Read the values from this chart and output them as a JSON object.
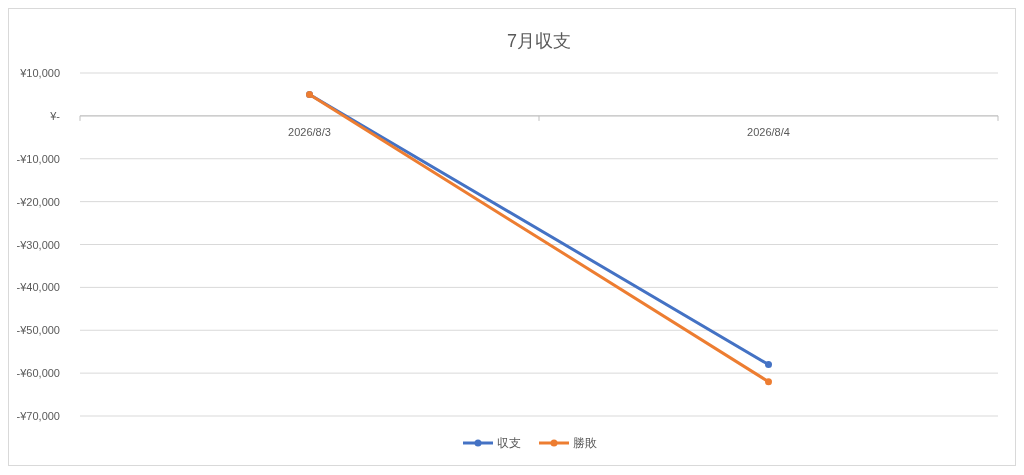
{
  "chart_data": {
    "type": "line",
    "title": "7月収支",
    "categories": [
      "2026/8/3",
      "2026/8/4"
    ],
    "series": [
      {
        "name": "収支",
        "color": "#4472c4",
        "values": [
          5000,
          -58000
        ]
      },
      {
        "name": "勝敗",
        "color": "#ed7d31",
        "values": [
          5000,
          -62000
        ]
      }
    ],
    "ylim": [
      -70000,
      10000
    ],
    "yticks": [
      {
        "value": 10000,
        "label": "¥10,000"
      },
      {
        "value": 0,
        "label": "¥-"
      },
      {
        "value": -10000,
        "label": "-¥10,000"
      },
      {
        "value": -20000,
        "label": "-¥20,000"
      },
      {
        "value": -30000,
        "label": "-¥30,000"
      },
      {
        "value": -40000,
        "label": "-¥40,000"
      },
      {
        "value": -50000,
        "label": "-¥50,000"
      },
      {
        "value": -60000,
        "label": "-¥60,000"
      },
      {
        "value": -70000,
        "label": "-¥70,000"
      }
    ],
    "grid": "y",
    "legend": "bottom",
    "marker": "circle"
  }
}
